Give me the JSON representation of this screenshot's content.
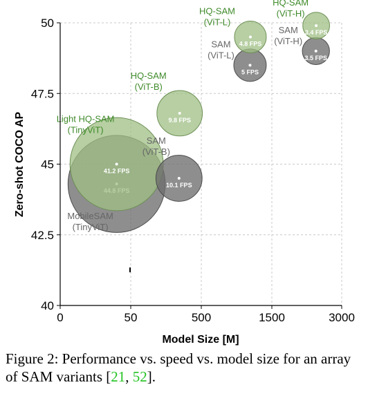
{
  "chart_data": {
    "type": "scatter",
    "title": "",
    "xlabel": "Model Size [M]",
    "ylabel": "Zero-shot COCO AP",
    "x_ticks": [
      "0",
      "50",
      "500",
      "1500",
      "3000"
    ],
    "y_ticks": [
      "40",
      "42.5",
      "45",
      "47.5",
      "50"
    ],
    "ylim": [
      40,
      50
    ],
    "grid": true,
    "colors": {
      "hq": "#9fbf84",
      "sam": "#6e6e6e",
      "hq_text": "#3f8a2a",
      "sam_text": "#666666"
    },
    "points": [
      {
        "group": "hq",
        "label": [
          "Light HQ-SAM",
          "(TinyViT)"
        ],
        "size_m": 40,
        "ap": 45.0,
        "fps": "41.2 FPS"
      },
      {
        "group": "sam",
        "label": [
          "MobileSAM",
          "(TinyViT)"
        ],
        "size_m": 40,
        "ap": 44.3,
        "fps": "44.8 FPS"
      },
      {
        "group": "hq",
        "label": [
          "HQ-SAM",
          "(ViT-B)"
        ],
        "size_m": 362,
        "ap": 46.8,
        "fps": "9.8 FPS"
      },
      {
        "group": "sam",
        "label": [
          "SAM",
          "(ViT-B)"
        ],
        "size_m": 358,
        "ap": 44.5,
        "fps": "10.1 FPS"
      },
      {
        "group": "hq",
        "label": [
          "HQ-SAM",
          "(ViT-L)"
        ],
        "size_m": 1196,
        "ap": 49.5,
        "fps": "4.8 FPS"
      },
      {
        "group": "sam",
        "label": [
          "SAM",
          "(ViT-L)"
        ],
        "size_m": 1191,
        "ap": 48.5,
        "fps": "5 FPS"
      },
      {
        "group": "hq",
        "label": [
          "HQ-SAM",
          "(ViT-H)"
        ],
        "size_m": 2452,
        "ap": 49.9,
        "fps": "3.4 FPS"
      },
      {
        "group": "sam",
        "label": [
          "SAM",
          "(ViT-H)"
        ],
        "size_m": 2446,
        "ap": 49.0,
        "fps": "3.5 FPS"
      }
    ]
  },
  "caption": {
    "prefix": "Figure 2: Performance vs. speed vs. model size for an array of SAM variants [",
    "ref1": "21",
    "sep": ", ",
    "ref2": "52",
    "suffix": "]."
  }
}
